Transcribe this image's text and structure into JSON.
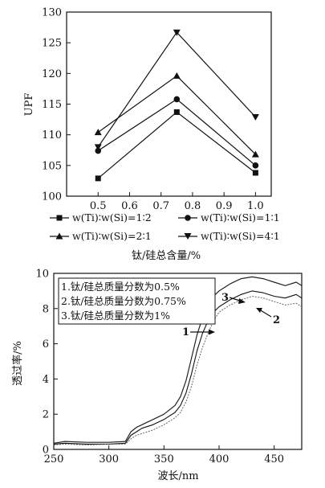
{
  "chart_data": [
    {
      "type": "line",
      "xlabel": "钛/硅总含量/%",
      "ylabel": "UPF",
      "xlim": [
        0.4,
        1.05
      ],
      "ylim": [
        100,
        130
      ],
      "x_ticks": [
        "0.5",
        "0.6",
        "0.7",
        "0.8",
        "0.9",
        "1.0"
      ],
      "y_ticks": [
        "100",
        "105",
        "110",
        "115",
        "120",
        "125",
        "130"
      ],
      "x": [
        0.5,
        0.75,
        1.0
      ],
      "series": [
        {
          "name": "w(Ti)∶w(Si)=1∶2",
          "marker": "square",
          "values": [
            102.9,
            113.7,
            103.8
          ]
        },
        {
          "name": "w(Ti)∶w(Si)=1∶1",
          "marker": "circle",
          "values": [
            107.4,
            115.8,
            105.0
          ]
        },
        {
          "name": "w(Ti)∶w(Si)=2∶1",
          "marker": "triangle-up",
          "values": [
            110.4,
            119.6,
            106.8
          ]
        },
        {
          "name": "w(Ti)∶w(Si)=4∶1",
          "marker": "triangle-down",
          "values": [
            108.0,
            126.7,
            112.9
          ]
        }
      ],
      "legend_position": "bottom"
    },
    {
      "type": "line",
      "xlabel": "波长/nm",
      "ylabel": "透过率/%",
      "xlim": [
        250,
        475
      ],
      "ylim": [
        0,
        10
      ],
      "x_ticks": [
        "250",
        "300",
        "350",
        "400",
        "450"
      ],
      "y_ticks": [
        "0",
        "2",
        "4",
        "6",
        "8",
        "10"
      ],
      "legend": [
        "1.钛/硅总质量分数为0.5%",
        "2.钛/硅总质量分数为0.75%",
        "3.钛/硅总质量分数为1%"
      ],
      "legend_position": "top-left",
      "series": [
        {
          "name": "1",
          "x": [
            250,
            260,
            280,
            300,
            315,
            320,
            325,
            330,
            340,
            350,
            360,
            365,
            370,
            375,
            380,
            385,
            390,
            395,
            400,
            410,
            420,
            430,
            440,
            450,
            460,
            470,
            475
          ],
          "values": [
            0.3,
            0.35,
            0.3,
            0.3,
            0.35,
            0.8,
            1.0,
            1.2,
            1.4,
            1.7,
            2.1,
            2.5,
            3.2,
            4.3,
            5.6,
            6.6,
            7.3,
            7.8,
            8.1,
            8.5,
            8.8,
            9.0,
            8.9,
            8.7,
            8.6,
            8.8,
            8.6
          ]
        },
        {
          "name": "2",
          "x": [
            250,
            260,
            280,
            300,
            315,
            320,
            325,
            330,
            340,
            350,
            360,
            365,
            370,
            375,
            380,
            385,
            390,
            395,
            400,
            410,
            420,
            430,
            440,
            450,
            460,
            470,
            475
          ],
          "values": [
            0.25,
            0.3,
            0.25,
            0.3,
            0.3,
            0.6,
            0.8,
            0.9,
            1.1,
            1.4,
            1.8,
            2.1,
            2.7,
            3.6,
            4.8,
            5.8,
            6.6,
            7.3,
            7.8,
            8.2,
            8.5,
            8.7,
            8.6,
            8.4,
            8.2,
            8.3,
            8.1
          ]
        },
        {
          "name": "3",
          "x": [
            250,
            260,
            280,
            300,
            315,
            320,
            325,
            330,
            340,
            350,
            360,
            365,
            370,
            375,
            380,
            385,
            390,
            395,
            400,
            410,
            420,
            430,
            440,
            450,
            460,
            470,
            475
          ],
          "values": [
            0.35,
            0.45,
            0.4,
            0.4,
            0.45,
            1.0,
            1.25,
            1.4,
            1.7,
            2.0,
            2.5,
            3.0,
            3.9,
            5.2,
            6.5,
            7.5,
            8.2,
            8.7,
            9.0,
            9.4,
            9.7,
            9.8,
            9.7,
            9.5,
            9.3,
            9.5,
            9.3
          ]
        }
      ],
      "annotations": [
        "1",
        "2",
        "3"
      ]
    }
  ]
}
